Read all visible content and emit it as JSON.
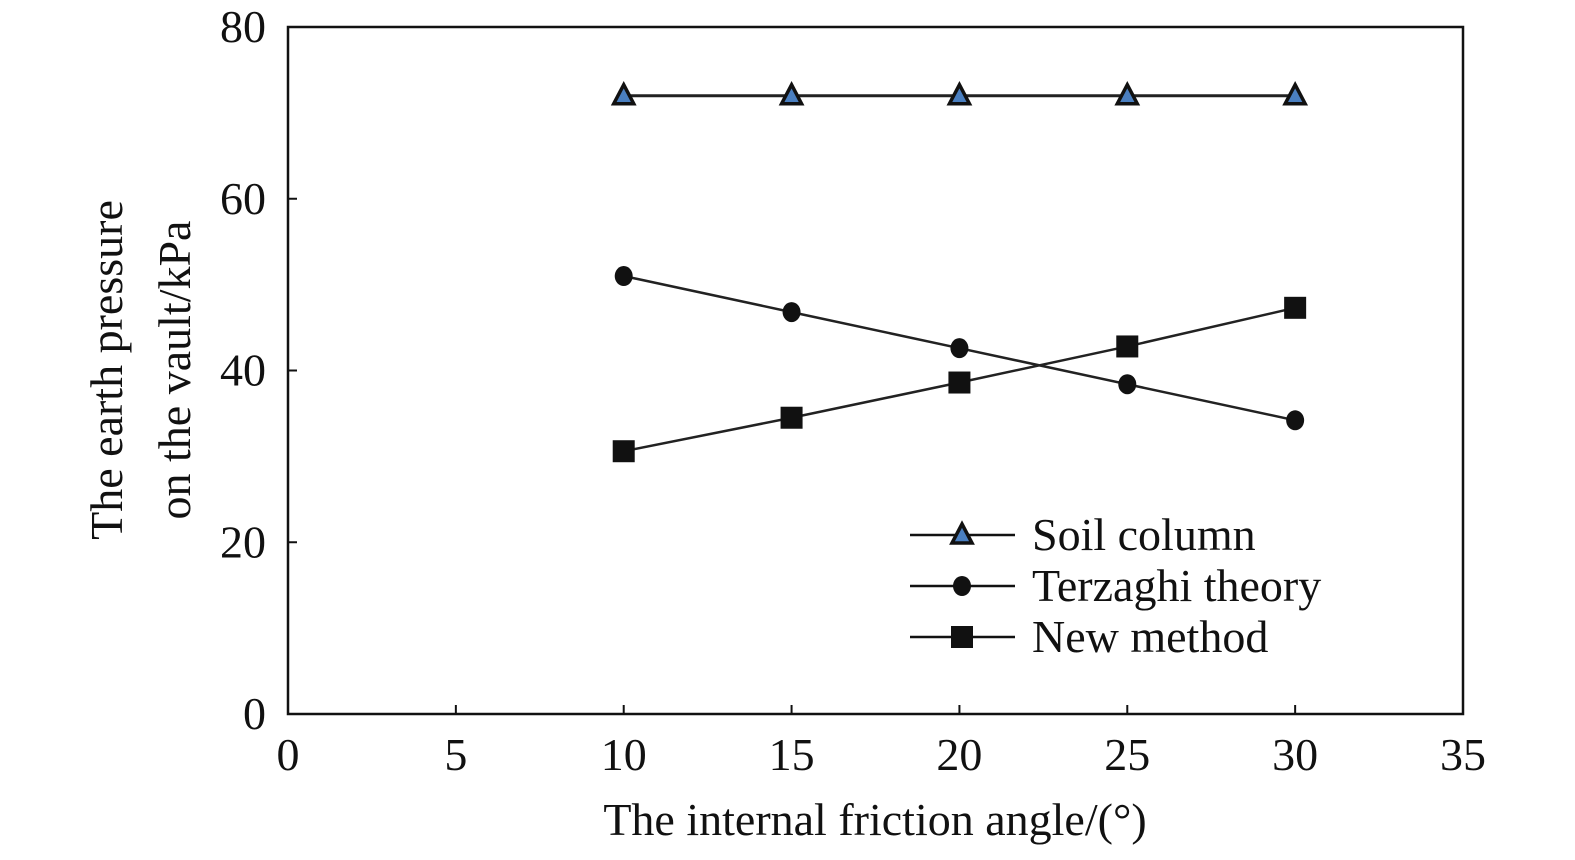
{
  "chart_data": {
    "type": "line",
    "title": "",
    "xlabel": "The internal friction angle/(°)",
    "ylabel_lines": [
      "The earth pressure",
      "on the vault/kPa"
    ],
    "xlim": [
      0,
      35
    ],
    "ylim": [
      0,
      80
    ],
    "xticks": [
      0,
      5,
      10,
      15,
      20,
      25,
      30,
      35
    ],
    "yticks": [
      0,
      20,
      40,
      60,
      80
    ],
    "grid": false,
    "legend_position": "bottom-right",
    "x": [
      10,
      15,
      20,
      25,
      30
    ],
    "series": [
      {
        "name": "Soil column",
        "marker": "triangle",
        "marker_color": "#4a7fc0",
        "values": [
          72,
          72,
          72,
          72,
          72
        ]
      },
      {
        "name": "Terzaghi theory",
        "marker": "circle",
        "marker_color": "#111111",
        "values": [
          51.0,
          46.8,
          42.6,
          38.4,
          34.2
        ]
      },
      {
        "name": "New method",
        "marker": "square",
        "marker_color": "#111111",
        "values": [
          30.6,
          34.5,
          38.6,
          42.8,
          47.3
        ]
      }
    ]
  }
}
